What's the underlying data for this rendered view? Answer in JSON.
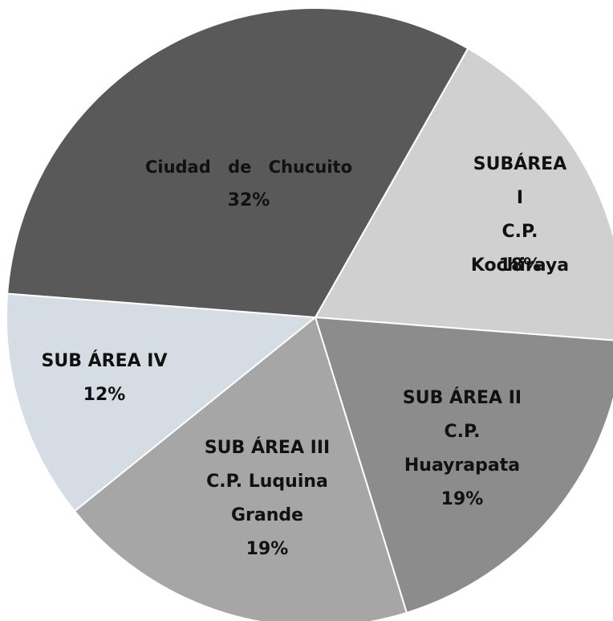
{
  "chart_data": {
    "type": "pie",
    "categories": [
      "SUBÁREA I\nC.P. Kochiraya",
      "SUB ÁREA II\nC.P.\nHuayrapata",
      "SUB ÁREA III\nC.P. Luquina\nGrande",
      "SUB ÁREA IV",
      "Ciudad de Chucuito"
    ],
    "values": [
      18,
      19,
      19,
      12,
      32
    ],
    "value_labels": [
      "18%",
      "19%",
      "19%",
      "12%",
      "32%"
    ],
    "colors": [
      "#d0d0d0",
      "#8c8c8c",
      "#a6a6a6",
      "#d6dce4",
      "#595959"
    ]
  }
}
